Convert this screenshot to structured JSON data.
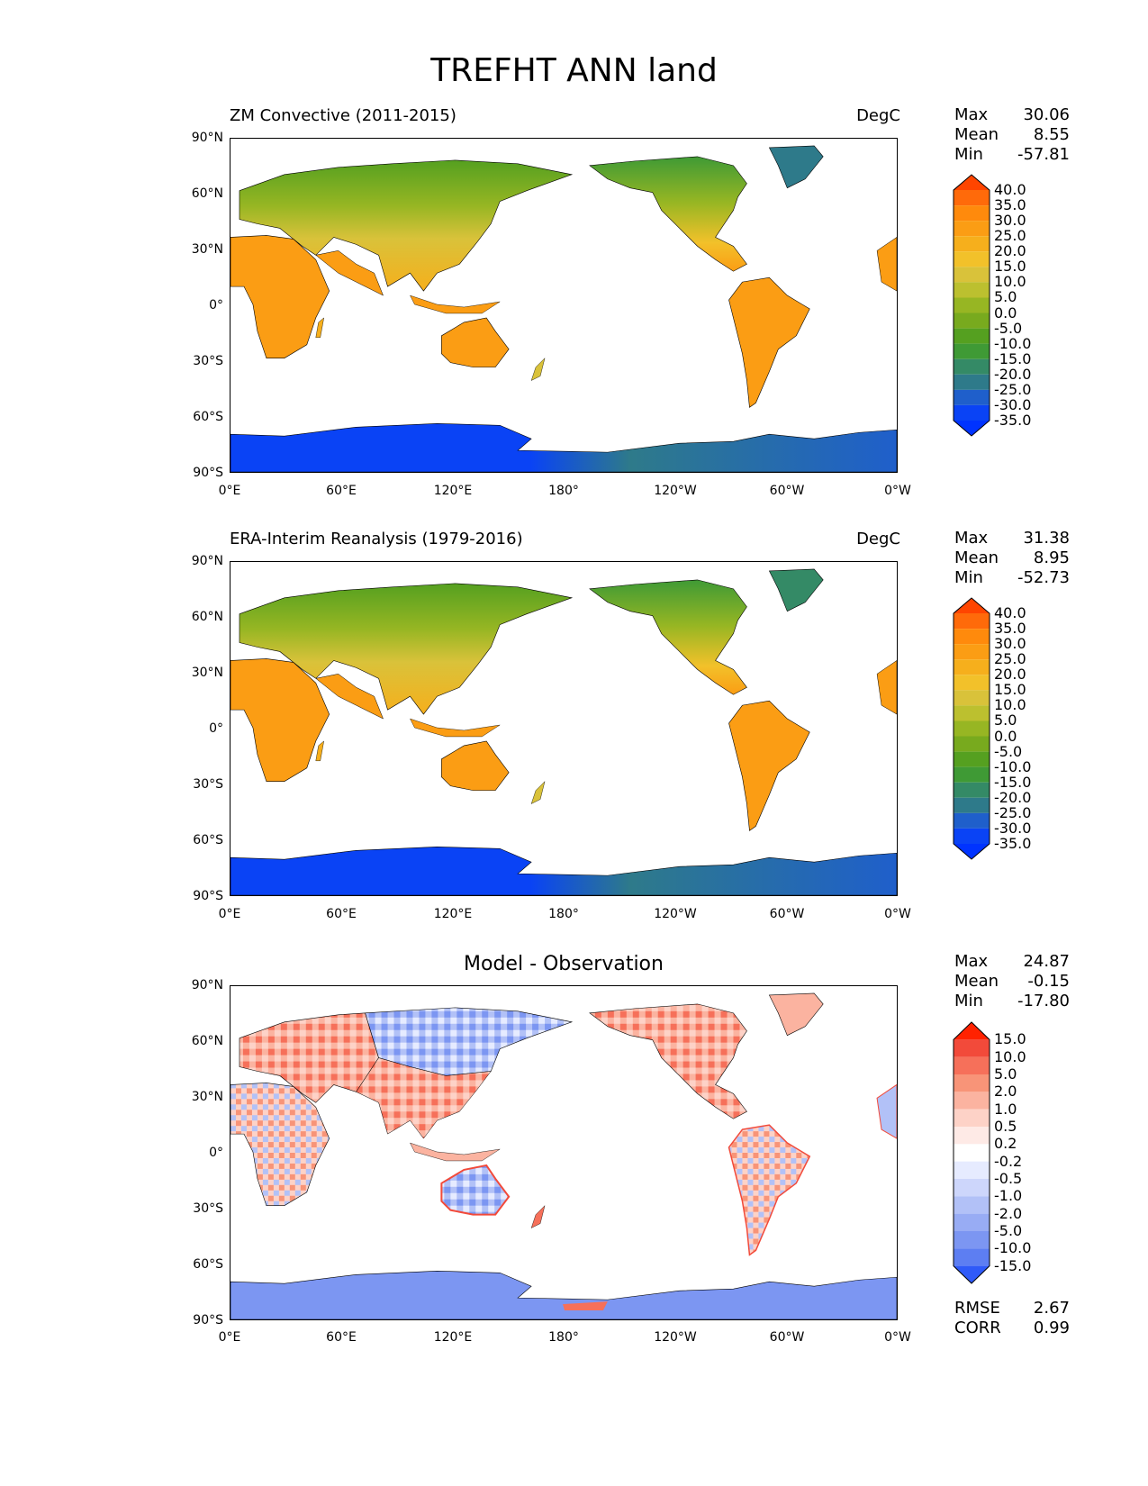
{
  "title": "TREFHT ANN land",
  "panels": [
    {
      "id": "model",
      "left_title": "ZM Convective (2011-2015)",
      "right_title": "DegC",
      "stats": [
        {
          "label": "Max",
          "value": "30.06"
        },
        {
          "label": "Mean",
          "value": "8.55"
        },
        {
          "label": "Min",
          "value": "-57.81"
        }
      ],
      "colorbar": {
        "labels": [
          "40.0",
          "35.0",
          "30.0",
          "25.0",
          "20.0",
          "15.0",
          "10.0",
          "5.0",
          "0.0",
          "-5.0",
          "-10.0",
          "-15.0",
          "-20.0",
          "-25.0",
          "-30.0",
          "-35.0"
        ],
        "colors": [
          "#ff4500",
          "#ff6a0a",
          "#ff8a0c",
          "#fb9d14",
          "#f6af1c",
          "#f2c12a",
          "#d9c23a",
          "#bcc02f",
          "#97b623",
          "#78aa1e",
          "#55a020",
          "#3f9a35",
          "#348a66",
          "#2e7a8a",
          "#1f5fcb",
          "#0a43f5",
          "#0033ff"
        ]
      }
    },
    {
      "id": "obs",
      "left_title": "ERA-Interim Reanalysis (1979-2016)",
      "right_title": "DegC",
      "stats": [
        {
          "label": "Max",
          "value": "31.38"
        },
        {
          "label": "Mean",
          "value": "8.95"
        },
        {
          "label": "Min",
          "value": "-52.73"
        }
      ],
      "colorbar": {
        "labels": [
          "40.0",
          "35.0",
          "30.0",
          "25.0",
          "20.0",
          "15.0",
          "10.0",
          "5.0",
          "0.0",
          "-5.0",
          "-10.0",
          "-15.0",
          "-20.0",
          "-25.0",
          "-30.0",
          "-35.0"
        ],
        "colors": [
          "#ff4500",
          "#ff6a0a",
          "#ff8a0c",
          "#fb9d14",
          "#f6af1c",
          "#f2c12a",
          "#d9c23a",
          "#bcc02f",
          "#97b623",
          "#78aa1e",
          "#55a020",
          "#3f9a35",
          "#348a66",
          "#2e7a8a",
          "#1f5fcb",
          "#0a43f5",
          "#0033ff"
        ]
      }
    },
    {
      "id": "diff",
      "center_title": "Model - Observation",
      "stats": [
        {
          "label": "Max",
          "value": "24.87"
        },
        {
          "label": "Mean",
          "value": "-0.15"
        },
        {
          "label": "Min",
          "value": "-17.80"
        }
      ],
      "colorbar": {
        "labels": [
          "15.0",
          "10.0",
          "5.0",
          "2.0",
          "1.0",
          "0.5",
          "0.2",
          "-0.2",
          "-0.5",
          "-1.0",
          "-2.0",
          "-5.0",
          "-10.0",
          "-15.0"
        ],
        "colors": [
          "#ff2200",
          "#f24a3a",
          "#f6705a",
          "#f89478",
          "#fbb3a0",
          "#fdd2c7",
          "#feeae6",
          "#ffffff",
          "#e6ebff",
          "#cdd6fb",
          "#b2c1f7",
          "#98acf4",
          "#7c96f2",
          "#5d7ef2",
          "#2f5af8"
        ]
      },
      "metrics": [
        {
          "label": "RMSE",
          "value": "2.67"
        },
        {
          "label": "CORR",
          "value": "0.99"
        }
      ]
    }
  ],
  "axes": {
    "lat_labels": [
      "90°N",
      "60°N",
      "30°N",
      "0°",
      "30°S",
      "60°S",
      "90°S"
    ],
    "lon_labels": [
      "0°E",
      "60°E",
      "120°E",
      "180°",
      "120°W",
      "60°W",
      "0°W"
    ]
  }
}
